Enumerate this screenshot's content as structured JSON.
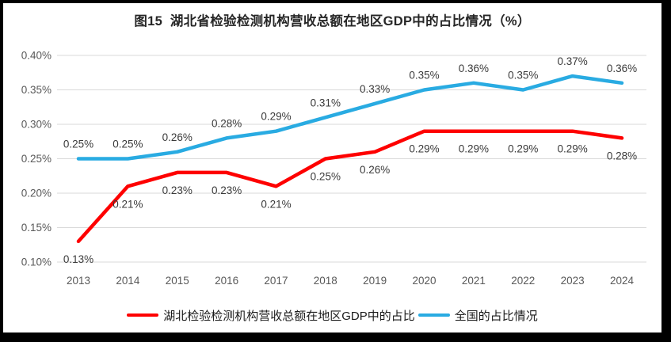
{
  "chart_data": {
    "type": "line",
    "title": "图15  湖北省检验检测机构营收总额在地区GDP中的占比情况（%）",
    "xlabel": "",
    "ylabel": "",
    "categories": [
      "2013",
      "2014",
      "2015",
      "2016",
      "2017",
      "2018",
      "2019",
      "2020",
      "2021",
      "2022",
      "2023",
      "2024"
    ],
    "series": [
      {
        "id": "hubei",
        "name": "湖北检验检测机构营收总额在地区GDP中的占比",
        "color": "#fe0000",
        "label_position": "below",
        "values": [
          0.13,
          0.21,
          0.23,
          0.23,
          0.21,
          0.25,
          0.26,
          0.29,
          0.29,
          0.29,
          0.29,
          0.28
        ],
        "labels": [
          "0.13%",
          "0.21%",
          "0.23%",
          "0.23%",
          "0.21%",
          "0.25%",
          "0.26%",
          "0.29%",
          "0.29%",
          "0.29%",
          "0.29%",
          "0.28%"
        ]
      },
      {
        "id": "national",
        "name": "全国的占比情况",
        "color": "#29abe2",
        "label_position": "above",
        "values": [
          0.25,
          0.25,
          0.26,
          0.28,
          0.29,
          0.31,
          0.33,
          0.35,
          0.36,
          0.35,
          0.37,
          0.36
        ],
        "labels": [
          "0.25%",
          "0.25%",
          "0.26%",
          "0.28%",
          "0.29%",
          "0.31%",
          "0.33%",
          "0.35%",
          "0.36%",
          "0.35%",
          "0.37%",
          "0.36%"
        ]
      }
    ],
    "ylim": [
      0.1,
      0.4
    ],
    "yticks": [
      "0.10%",
      "0.15%",
      "0.20%",
      "0.25%",
      "0.30%",
      "0.35%",
      "0.40%"
    ],
    "grid": "horizontal",
    "legend_position": "bottom"
  }
}
